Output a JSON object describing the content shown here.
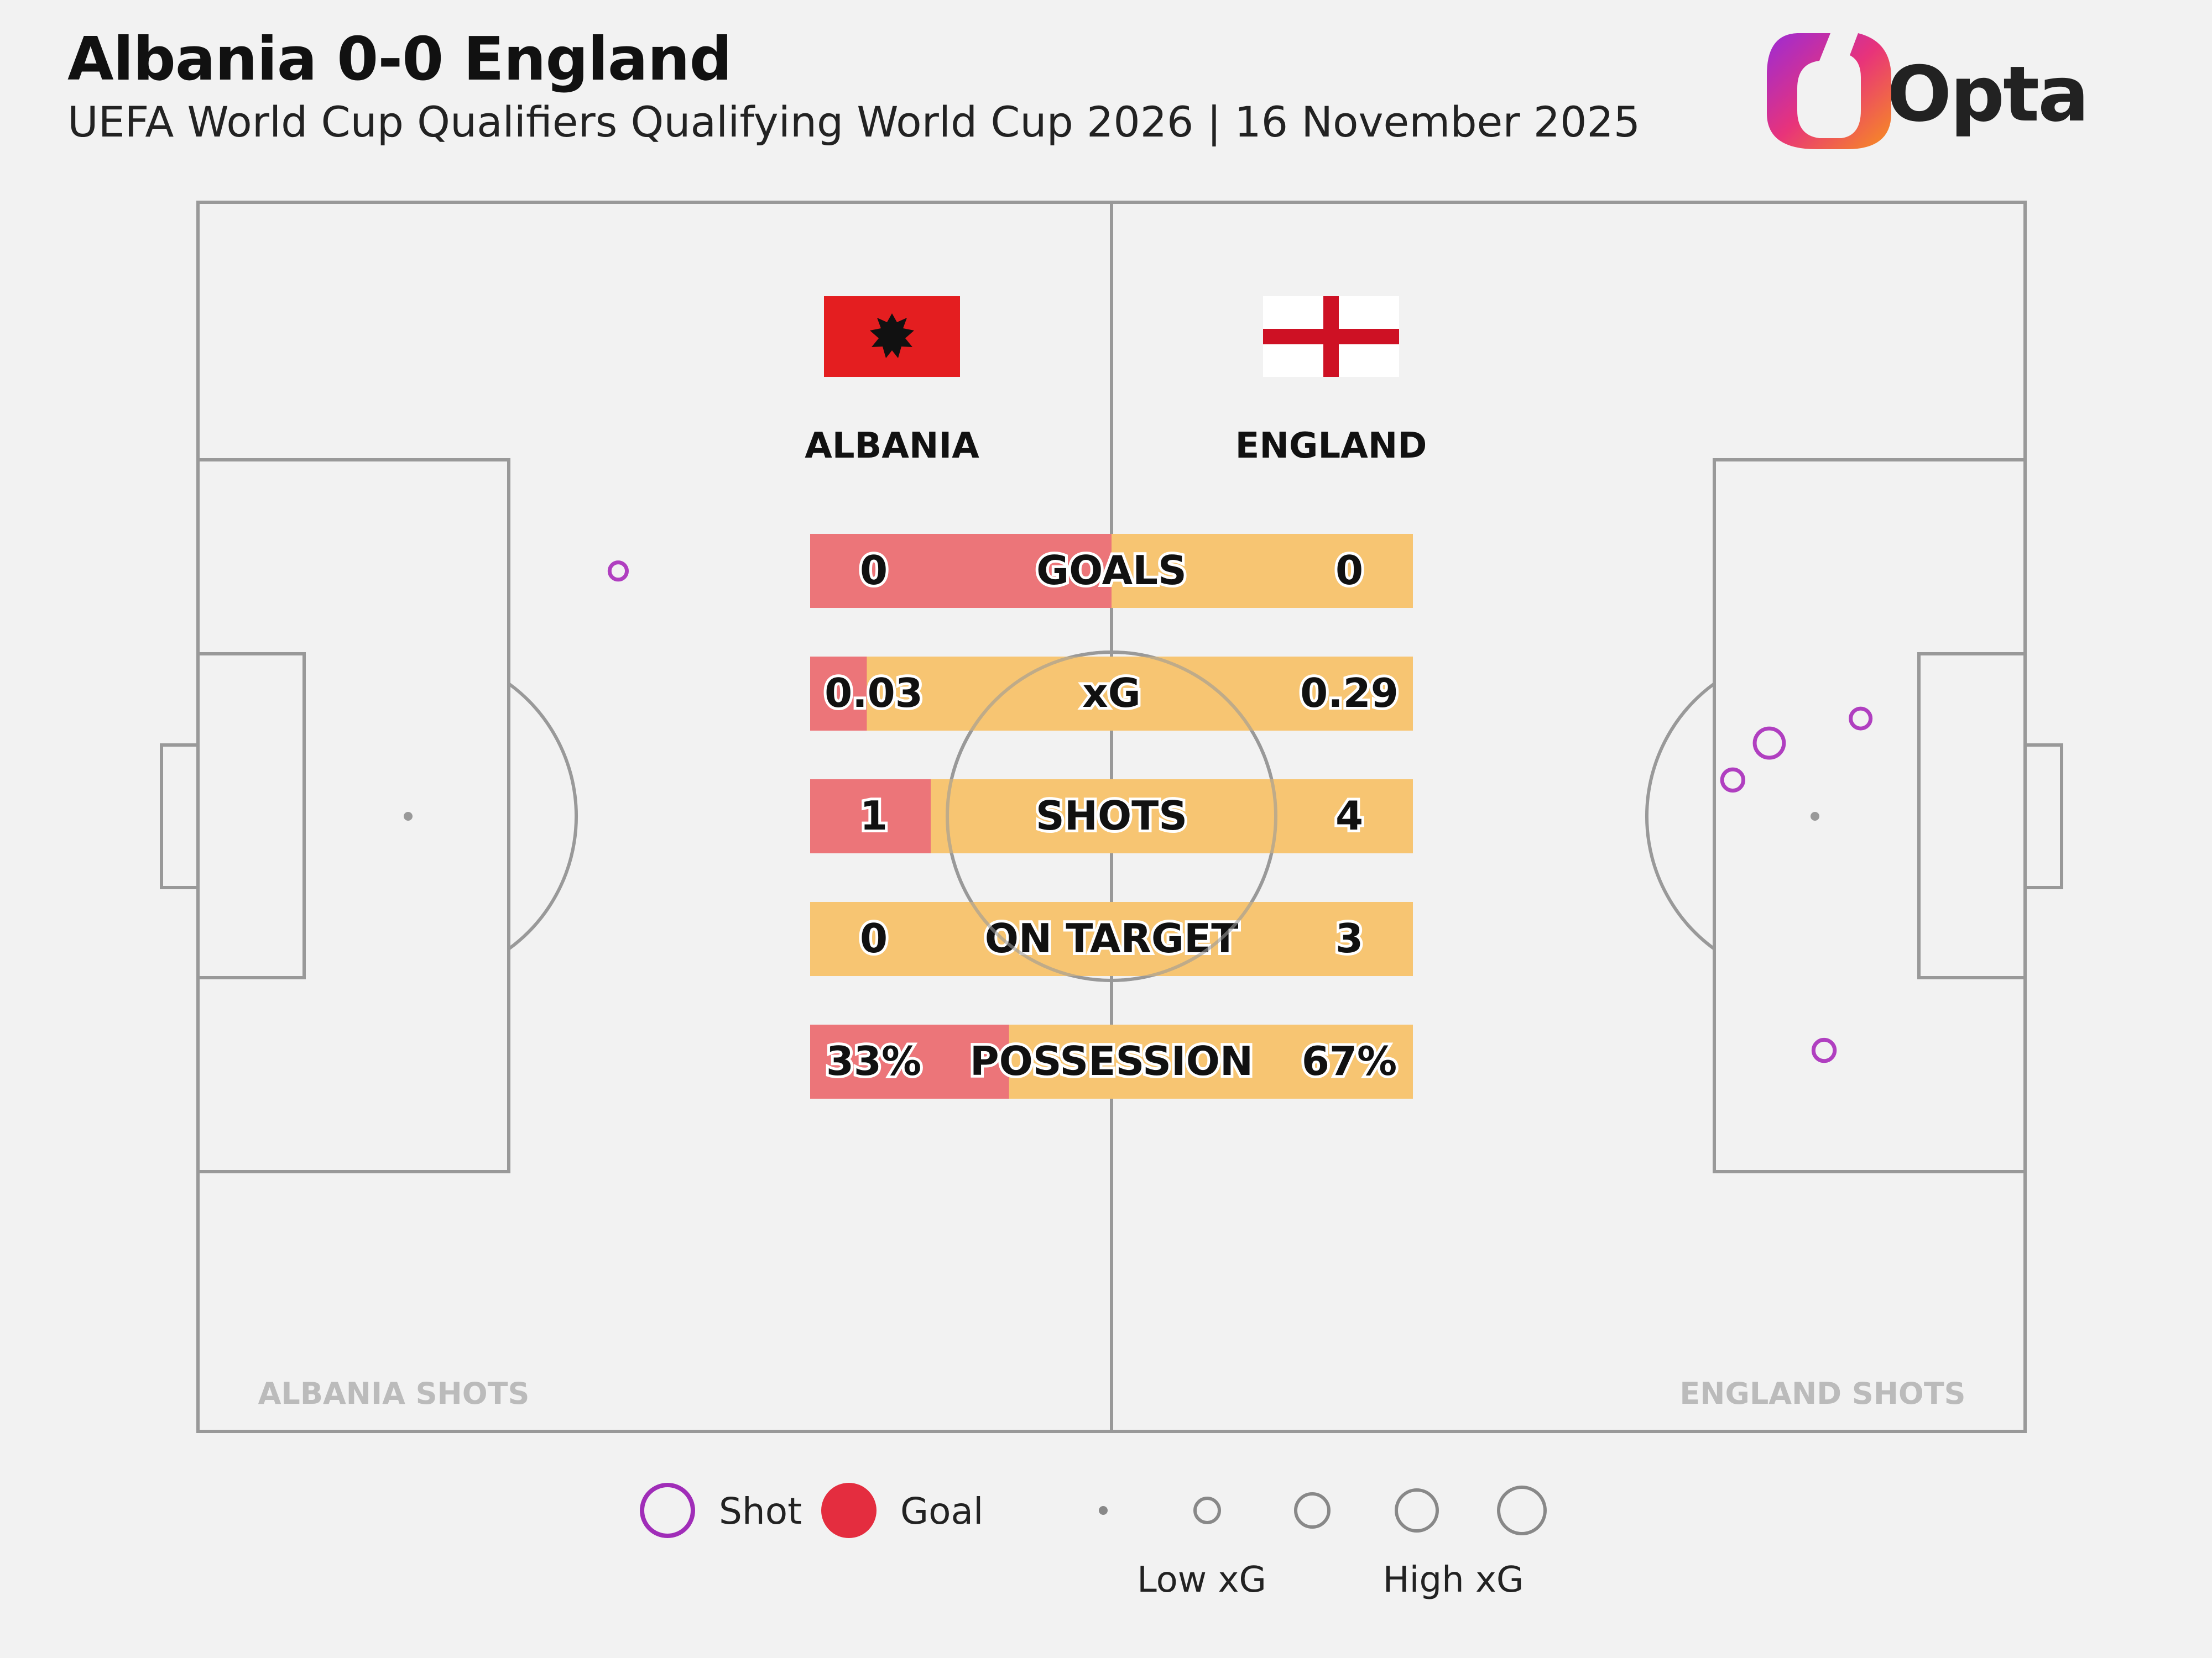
{
  "header": {
    "title": "Albania 0-0 England",
    "subtitle": "UEFA World Cup Qualifiers Qualifying World Cup 2026 | 16 November 2025",
    "logo_text": "Opta"
  },
  "teams": {
    "home": {
      "name": "ALBANIA",
      "flag": "albania-flag",
      "color": "#ec7579"
    },
    "away": {
      "name": "ENGLAND",
      "flag": "england-flag",
      "color": "#f7c572"
    }
  },
  "pitch_labels": {
    "home_shots": "ALBANIA SHOTS",
    "away_shots": "ENGLAND SHOTS"
  },
  "legend": {
    "shot": "Shot",
    "goal": "Goal",
    "low_xg": "Low xG",
    "high_xg": "High xG",
    "shot_color": "#b03fc0",
    "goal_color": "#e42d3f"
  },
  "chart_data": {
    "type": "table",
    "stats": [
      {
        "label": "GOALS",
        "home": 0,
        "away": 0,
        "home_display": "0",
        "away_display": "0"
      },
      {
        "label": "xG",
        "home": 0.03,
        "away": 0.29,
        "home_display": "0.03",
        "away_display": "0.29"
      },
      {
        "label": "SHOTS",
        "home": 1,
        "away": 4,
        "home_display": "1",
        "away_display": "4"
      },
      {
        "label": "ON TARGET",
        "home": 0,
        "away": 3,
        "home_display": "0",
        "away_display": "3"
      },
      {
        "label": "POSSESSION",
        "home": 33,
        "away": 67,
        "home_display": "33%",
        "away_display": "67%"
      }
    ],
    "home_bar_share": [
      0.5,
      0.094,
      0.2,
      0.0,
      0.33
    ],
    "shots": {
      "home": [
        {
          "x": 77,
          "y": 30,
          "xg": 0.03,
          "goal": false
        }
      ],
      "away": [
        {
          "x": 86,
          "y": 44,
          "xg": 0.12,
          "goal": false
        },
        {
          "x": 91,
          "y": 42,
          "xg": 0.05,
          "goal": false
        },
        {
          "x": 84,
          "y": 47,
          "xg": 0.06,
          "goal": false
        },
        {
          "x": 89,
          "y": 69,
          "xg": 0.06,
          "goal": false
        }
      ]
    }
  }
}
